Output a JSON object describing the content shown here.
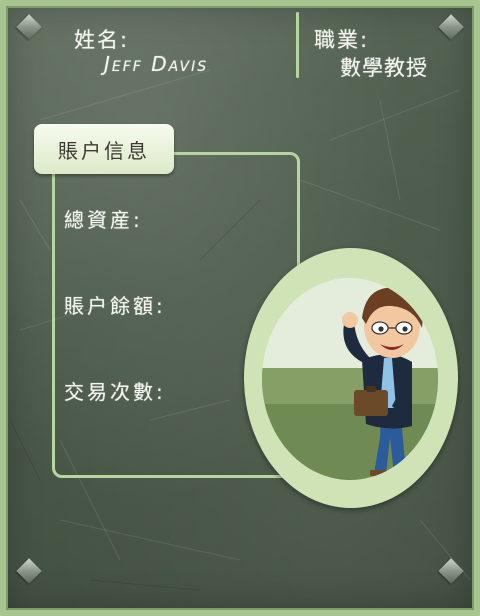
{
  "profile": {
    "name_label": "姓名:",
    "name_value": "Jeff Davis",
    "job_label": "職業:",
    "job_value": "數學教授"
  },
  "account": {
    "tab_label": "賬户信息",
    "fields": [
      {
        "label": "總資産:"
      },
      {
        "label": "賬户餘額:"
      },
      {
        "label": "交易次數:"
      }
    ]
  },
  "avatar": {
    "icon": "cartoon-professor-avatar"
  },
  "colors": {
    "board": "#4b5a4a",
    "frame_green": "#b9d59f",
    "tab_bg": "#eaf3dd",
    "chalk_text": "#f4f6ef"
  }
}
